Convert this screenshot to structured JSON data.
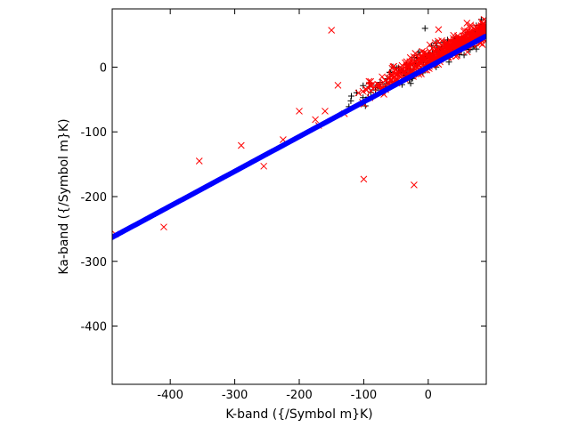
{
  "chart_data": {
    "type": "scatter",
    "title": "",
    "xlabel": "K-band ({/Symbol m}K)",
    "ylabel": "Ka-band ({/Symbol m}K)",
    "xlim": [
      -490,
      90
    ],
    "ylim": [
      -490,
      90
    ],
    "xticks": [
      -400,
      -300,
      -200,
      -100,
      0
    ],
    "yticks": [
      0,
      -100,
      -200,
      -300,
      -400
    ],
    "grid": false,
    "legend": "none",
    "series": [
      {
        "marker": "plus",
        "color": "#000000",
        "cloud": {
          "x_range": [
            -130,
            85
          ],
          "slope": 0.52,
          "intercept": 10,
          "spread": 9,
          "count": 170
        },
        "points": [
          {
            "x": -5,
            "y": 60
          },
          {
            "x": 30,
            "y": 42
          },
          {
            "x": -80,
            "y": -28
          },
          {
            "x": -120,
            "y": -52
          },
          {
            "x": 65,
            "y": 27
          },
          {
            "x": -60,
            "y": -8
          }
        ]
      },
      {
        "marker": "x",
        "color": "#ff0000",
        "cloud": {
          "x_range": [
            -110,
            90
          ],
          "slope": 0.52,
          "intercept": 12,
          "spread": 8,
          "count": 480
        },
        "points": [
          {
            "x": -150,
            "y": 57
          },
          {
            "x": 16,
            "y": 58
          },
          {
            "x": 60,
            "y": 68
          },
          {
            "x": -100,
            "y": -173
          },
          {
            "x": -22,
            "y": -182
          },
          {
            "x": -410,
            "y": -247
          },
          {
            "x": -355,
            "y": -145
          },
          {
            "x": -290,
            "y": -121
          },
          {
            "x": -255,
            "y": -153
          },
          {
            "x": -200,
            "y": -68
          },
          {
            "x": -175,
            "y": -81
          },
          {
            "x": -140,
            "y": -28
          },
          {
            "x": -485,
            "y": -258
          },
          {
            "x": -225,
            "y": -112
          },
          {
            "x": -170,
            "y": -90
          },
          {
            "x": -160,
            "y": -68
          },
          {
            "x": -130,
            "y": -72
          }
        ]
      },
      {
        "marker": "circle",
        "color": "#0000ff",
        "line": {
          "x_range": [
            -490,
            88
          ],
          "slope": 0.5365,
          "intercept": 0,
          "count": 260
        }
      }
    ]
  }
}
